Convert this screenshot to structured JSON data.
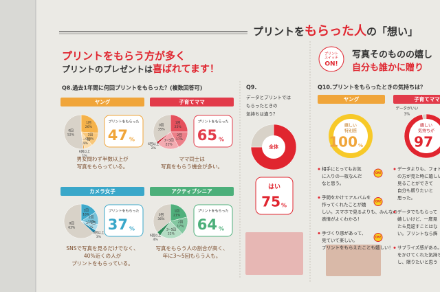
{
  "header": {
    "title_parts": [
      "プリントを",
      "もらった人",
      "の「想い」"
    ]
  },
  "left": {
    "headline": "プリントをもらう方が多く",
    "subhead_parts": [
      "プリントのプレゼントは",
      "喜ばれてます！"
    ],
    "question": "Q8.過去1年間に何回プリントをもらった？(複数回答可)",
    "panels": [
      {
        "title": "ヤング",
        "color": "#f0a53a",
        "callout": "プリントをもらった",
        "value": 47,
        "unit": "%",
        "caption": [
          "男女問わず半数以上が",
          "写真をもらっている。"
        ],
        "segments": [
          {
            "name": "1回",
            "value": 26,
            "label": "26%",
            "color": "#f5b24a"
          },
          {
            "name": "2回",
            "value": 13,
            "label": "13%",
            "color": "#f8c77a"
          },
          {
            "name": "3~5回",
            "value": 8,
            "label": "8%",
            "color": "#fbdcaa"
          },
          {
            "name": "6回以上",
            "value": 1,
            "label": "1%",
            "color": "#e89220"
          },
          {
            "name": "0回",
            "value": 52,
            "label": "52%",
            "color": "#d8d2c8"
          }
        ]
      },
      {
        "title": "子育てママ",
        "color": "#e23b4a",
        "callout": "プリントをもらった",
        "value": 65,
        "unit": "%",
        "caption": [
          "ママ同士は",
          "写真をもらう機会が多い。"
        ],
        "segments": [
          {
            "name": "1回",
            "value": 25,
            "label": "25%",
            "color": "#e5505c"
          },
          {
            "name": "2回",
            "value": 17,
            "label": "17%",
            "color": "#ec7f88"
          },
          {
            "name": "3~5回",
            "value": 21,
            "label": "21%",
            "color": "#f3abb1"
          },
          {
            "name": "6回以上",
            "value": 2,
            "label": "2%",
            "color": "#c92636"
          },
          {
            "name": "0回",
            "value": 35,
            "label": "35%",
            "color": "#d8d2c8"
          }
        ]
      },
      {
        "title": "カメラ女子",
        "color": "#3aa7c9",
        "callout": "プリントをもらった",
        "value": 37,
        "unit": "%",
        "caption": [
          "SNSで写真を見るだけでなく、",
          "40%近くの人が",
          "プリントをもらっている。"
        ],
        "segments": [
          {
            "name": "1回",
            "value": 16,
            "label": "16%",
            "color": "#3fa9cb"
          },
          {
            "name": "2回",
            "value": 12,
            "label": "12%",
            "color": "#77c2da"
          },
          {
            "name": "3~5回",
            "value": 6,
            "label": "6%",
            "color": "#acdbea"
          },
          {
            "name": "6回以上",
            "value": 3,
            "label": "3%",
            "color": "#2487aa"
          },
          {
            "name": "0回",
            "value": 63,
            "label": "63%",
            "color": "#d8d2c8"
          }
        ]
      },
      {
        "title": "アクティブシニア",
        "color": "#4caf7a",
        "callout": "プリントをもらった",
        "value": 64,
        "unit": "%",
        "caption": [
          "写真をもらう人の割合が高く、",
          "年に3～5回もらう人も。"
        ],
        "segments": [
          {
            "name": "1回",
            "value": 21,
            "label": "21%",
            "color": "#4fb07c"
          },
          {
            "name": "2回",
            "value": 17,
            "label": "17%",
            "color": "#82c7a0"
          },
          {
            "name": "3~5回",
            "value": 22,
            "label": "22%",
            "color": "#b3dcc3"
          },
          {
            "name": "6回以上",
            "value": 4,
            "label": "4%",
            "color": "#2f8c5a"
          },
          {
            "name": "0回",
            "value": 36,
            "label": "36%",
            "color": "#d8d2c8"
          }
        ]
      }
    ]
  },
  "q9": {
    "label": "Q9.",
    "text": [
      "データとプリントでは",
      "もらったときの",
      "気持ちは違う？"
    ],
    "center": "全体",
    "values": [
      75,
      25
    ],
    "colors": [
      "#e0252f",
      "#d8d2c8"
    ],
    "answer": "はい",
    "answer_value": 75,
    "unit": "%"
  },
  "right": {
    "badge": [
      "プリント",
      "スイッチ",
      "ON!"
    ],
    "headline": [
      "写真そのものの嬉し",
      "自分も誰かに贈り"
    ],
    "question": "Q10.プリントをもらったときの気持ちは？",
    "panels": [
      {
        "title": "ヤング",
        "color": "#f0a53a",
        "circle_color": "#f7c928",
        "text": [
          "嬉しい",
          "特別感"
        ],
        "value": 100,
        "unit": "%",
        "bullets": [
          [
            "相手にとってもお気",
            "に入りの一枚なんだ",
            "なと思う。"
          ],
          [
            "手間をかけてアルバムを",
            "作ってくれたことが嬉",
            "しい。スマホで見るよりも、みんなの",
            "表情がよくわかる！"
          ],
          [
            "手づくり感があって、",
            "見ていて楽しい。",
            "プリントをもらえたことも嬉しい！"
          ]
        ]
      },
      {
        "title": "子育てママ",
        "color": "#e23b4a",
        "circle_color": "#e0252f",
        "note": "データがいい",
        "note_value": 3,
        "note_label": "3%",
        "text": [
          "嬉しい",
          "気持ちが"
        ],
        "value": 97,
        "bullets": [
          [
            "データよりも、フォトブ",
            "の方が見た時に嬉しい",
            "見ることができて",
            "自分も贈りたいと",
            "思った。"
          ],
          [
            "データでももらって",
            "嬉しいけど、一度見",
            "たら見返すことはな",
            "い。プリントなら飾"
          ],
          [
            "サプライズ感がある。",
            "をかけてくれた気持ち",
            "し、贈りたいと思う"
          ]
        ]
      }
    ]
  }
}
